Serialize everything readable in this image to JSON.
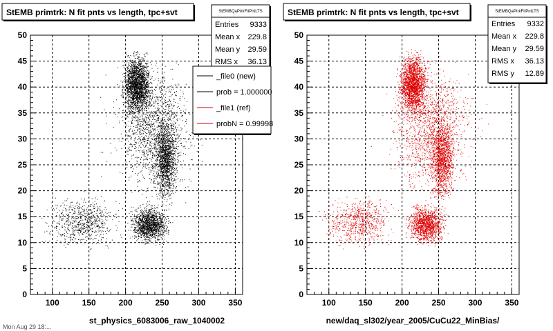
{
  "footer_text": "Mon Aug 29 18:...",
  "legend": {
    "items": [
      {
        "label": "_file0 (new)",
        "color": "#000000"
      },
      {
        "label": "prob = 1.000000",
        "color": "#000000"
      },
      {
        "label": "_file1 (ref)",
        "color": "#cc0000"
      },
      {
        "label": "probN = 0.99998",
        "color": "#cc0000"
      }
    ]
  },
  "panels": [
    {
      "title": "StEMB primtrk: N fit pnts vs length, tpc+svt",
      "xlabel": "st_physics_6083006_raw_1040002",
      "stats_name": "StEMBQaPtrkFitPntLTS",
      "stats": [
        {
          "label": "Entries",
          "value": "9333"
        },
        {
          "label": "Mean x",
          "value": "229.8"
        },
        {
          "label": "Mean y",
          "value": "29.59"
        },
        {
          "label": "RMS x",
          "value": "36.13"
        }
      ]
    },
    {
      "title": "StEMB primtrk: N fit pnts vs length, tpc+svt",
      "xlabel": "new/daq_sl302/year_2005/CuCu22_MinBias/",
      "stats_name": "StEMBQaPtrkFitPntLTS",
      "stats": [
        {
          "label": "Entries",
          "value": "9332"
        },
        {
          "label": "Mean x",
          "value": "229.8"
        },
        {
          "label": "Mean y",
          "value": "29.59"
        },
        {
          "label": "RMS x",
          "value": "36.13"
        },
        {
          "label": "RMS y",
          "value": "12.89"
        }
      ]
    }
  ],
  "chart_data": [
    {
      "type": "scatter",
      "title": "StEMB primtrk: N fit pnts vs length, tpc+svt",
      "xlabel": "st_physics_6083006_raw_1040002",
      "ylabel": "",
      "xlim": [
        70,
        360
      ],
      "ylim": [
        0,
        50
      ],
      "x_ticks": [
        100,
        150,
        200,
        250,
        300,
        350
      ],
      "y_ticks": [
        0,
        5,
        10,
        15,
        20,
        25,
        30,
        35,
        40,
        45,
        50
      ],
      "grid": true,
      "color": "#000000",
      "entries": 9333,
      "clusters": [
        {
          "x_range": [
            190,
            240
          ],
          "y_range": [
            33,
            48
          ],
          "weight": 0.3
        },
        {
          "x_range": [
            200,
            265
          ],
          "y_range": [
            9,
            18
          ],
          "weight": 0.2
        },
        {
          "x_range": [
            235,
            275
          ],
          "y_range": [
            16,
            36
          ],
          "weight": 0.18
        },
        {
          "x_range": [
            180,
            300
          ],
          "y_range": [
            15,
            47
          ],
          "weight": 0.17
        },
        {
          "x_range": [
            80,
            200
          ],
          "y_range": [
            8,
            20
          ],
          "weight": 0.1
        },
        {
          "x_range": [
            150,
            330
          ],
          "y_range": [
            20,
            47
          ],
          "weight": 0.05
        }
      ]
    },
    {
      "type": "scatter",
      "title": "StEMB primtrk: N fit pnts vs length, tpc+svt",
      "xlabel": "new/daq_sl302/year_2005/CuCu22_MinBias/",
      "ylabel": "",
      "xlim": [
        70,
        360
      ],
      "ylim": [
        0,
        50
      ],
      "x_ticks": [
        100,
        150,
        200,
        250,
        300,
        350
      ],
      "y_ticks": [
        0,
        5,
        10,
        15,
        20,
        25,
        30,
        35,
        40,
        45,
        50
      ],
      "grid": true,
      "color": "#e00000",
      "entries": 9332,
      "clusters": [
        {
          "x_range": [
            190,
            240
          ],
          "y_range": [
            33,
            48
          ],
          "weight": 0.3
        },
        {
          "x_range": [
            200,
            265
          ],
          "y_range": [
            9,
            18
          ],
          "weight": 0.2
        },
        {
          "x_range": [
            235,
            275
          ],
          "y_range": [
            16,
            36
          ],
          "weight": 0.18
        },
        {
          "x_range": [
            180,
            300
          ],
          "y_range": [
            15,
            47
          ],
          "weight": 0.17
        },
        {
          "x_range": [
            80,
            200
          ],
          "y_range": [
            8,
            20
          ],
          "weight": 0.1
        },
        {
          "x_range": [
            150,
            330
          ],
          "y_range": [
            20,
            47
          ],
          "weight": 0.05
        }
      ]
    }
  ]
}
